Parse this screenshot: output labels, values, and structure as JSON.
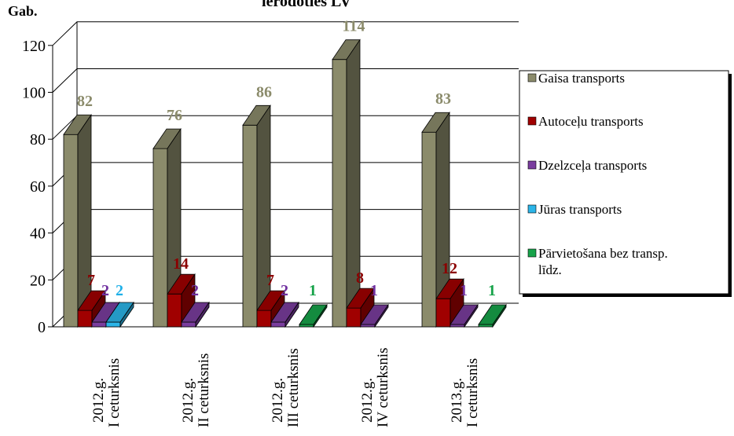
{
  "chart_data": {
    "type": "bar",
    "title": "ierodoties LV",
    "ylabel": "Gab.",
    "ylim": [
      0,
      120
    ],
    "yticks": [
      0,
      20,
      40,
      60,
      80,
      100,
      120
    ],
    "categories": [
      [
        "2012.g.",
        "I ceturksnis"
      ],
      [
        "2012.g.",
        "II ceturksnis"
      ],
      [
        "2012.g.",
        "III ceturksnis"
      ],
      [
        "2012.g.",
        "IV ceturksnis"
      ],
      [
        "2013.g.",
        "I ceturksnis"
      ]
    ],
    "series": [
      {
        "name": "Gaisa transports",
        "color": "#8B8B6B",
        "label_color": "#8B8B6B",
        "values": [
          82,
          76,
          86,
          114,
          83
        ]
      },
      {
        "name": "Autoceļu transports",
        "color": "#A00000",
        "label_color": "#8B0000",
        "values": [
          7,
          14,
          7,
          8,
          12
        ]
      },
      {
        "name": "Dzelzceļa transports",
        "color": "#7A3D9E",
        "label_color": "#7030A0",
        "values": [
          2,
          2,
          2,
          1,
          1
        ]
      },
      {
        "name": "Jūras transports",
        "color": "#2CB5E8",
        "label_color": "#1FB0E8",
        "values": [
          2,
          null,
          null,
          null,
          null
        ]
      },
      {
        "name": "Pārvietošana bez transp. līdz.",
        "color": "#17A34A",
        "label_color": "#17A34A",
        "values": [
          null,
          null,
          1,
          null,
          1
        ]
      }
    ],
    "legend_position": "right",
    "grid": true
  }
}
